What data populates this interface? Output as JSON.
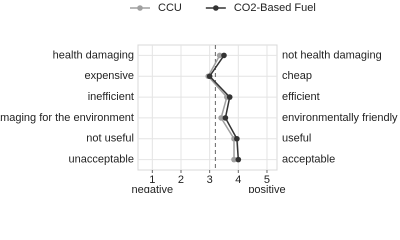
{
  "chart_data": {
    "type": "line",
    "orientation": "horizontal",
    "categories": [
      "health damaging",
      "expensive",
      "inefficient",
      "damaging for the environment",
      "not useful",
      "unacceptable"
    ],
    "right_categories": [
      "not health damaging",
      "cheap",
      "efficient",
      "environmentally friendly",
      "useful",
      "acceptable"
    ],
    "series": [
      {
        "name": "CCU",
        "color": "#a0a0a0",
        "values": [
          3.35,
          2.95,
          3.6,
          3.4,
          3.85,
          3.85
        ]
      },
      {
        "name": "CO2-Based Fuel",
        "color": "#333333",
        "values": [
          3.5,
          3.0,
          3.7,
          3.55,
          3.95,
          4.0
        ]
      }
    ],
    "xlim": [
      0.5,
      5.35
    ],
    "xticks": [
      1,
      2,
      3,
      4,
      5
    ],
    "x_label_low": "negative",
    "x_label_high": "positive",
    "reference_line": 3.2,
    "grid": true,
    "legend": "top"
  }
}
